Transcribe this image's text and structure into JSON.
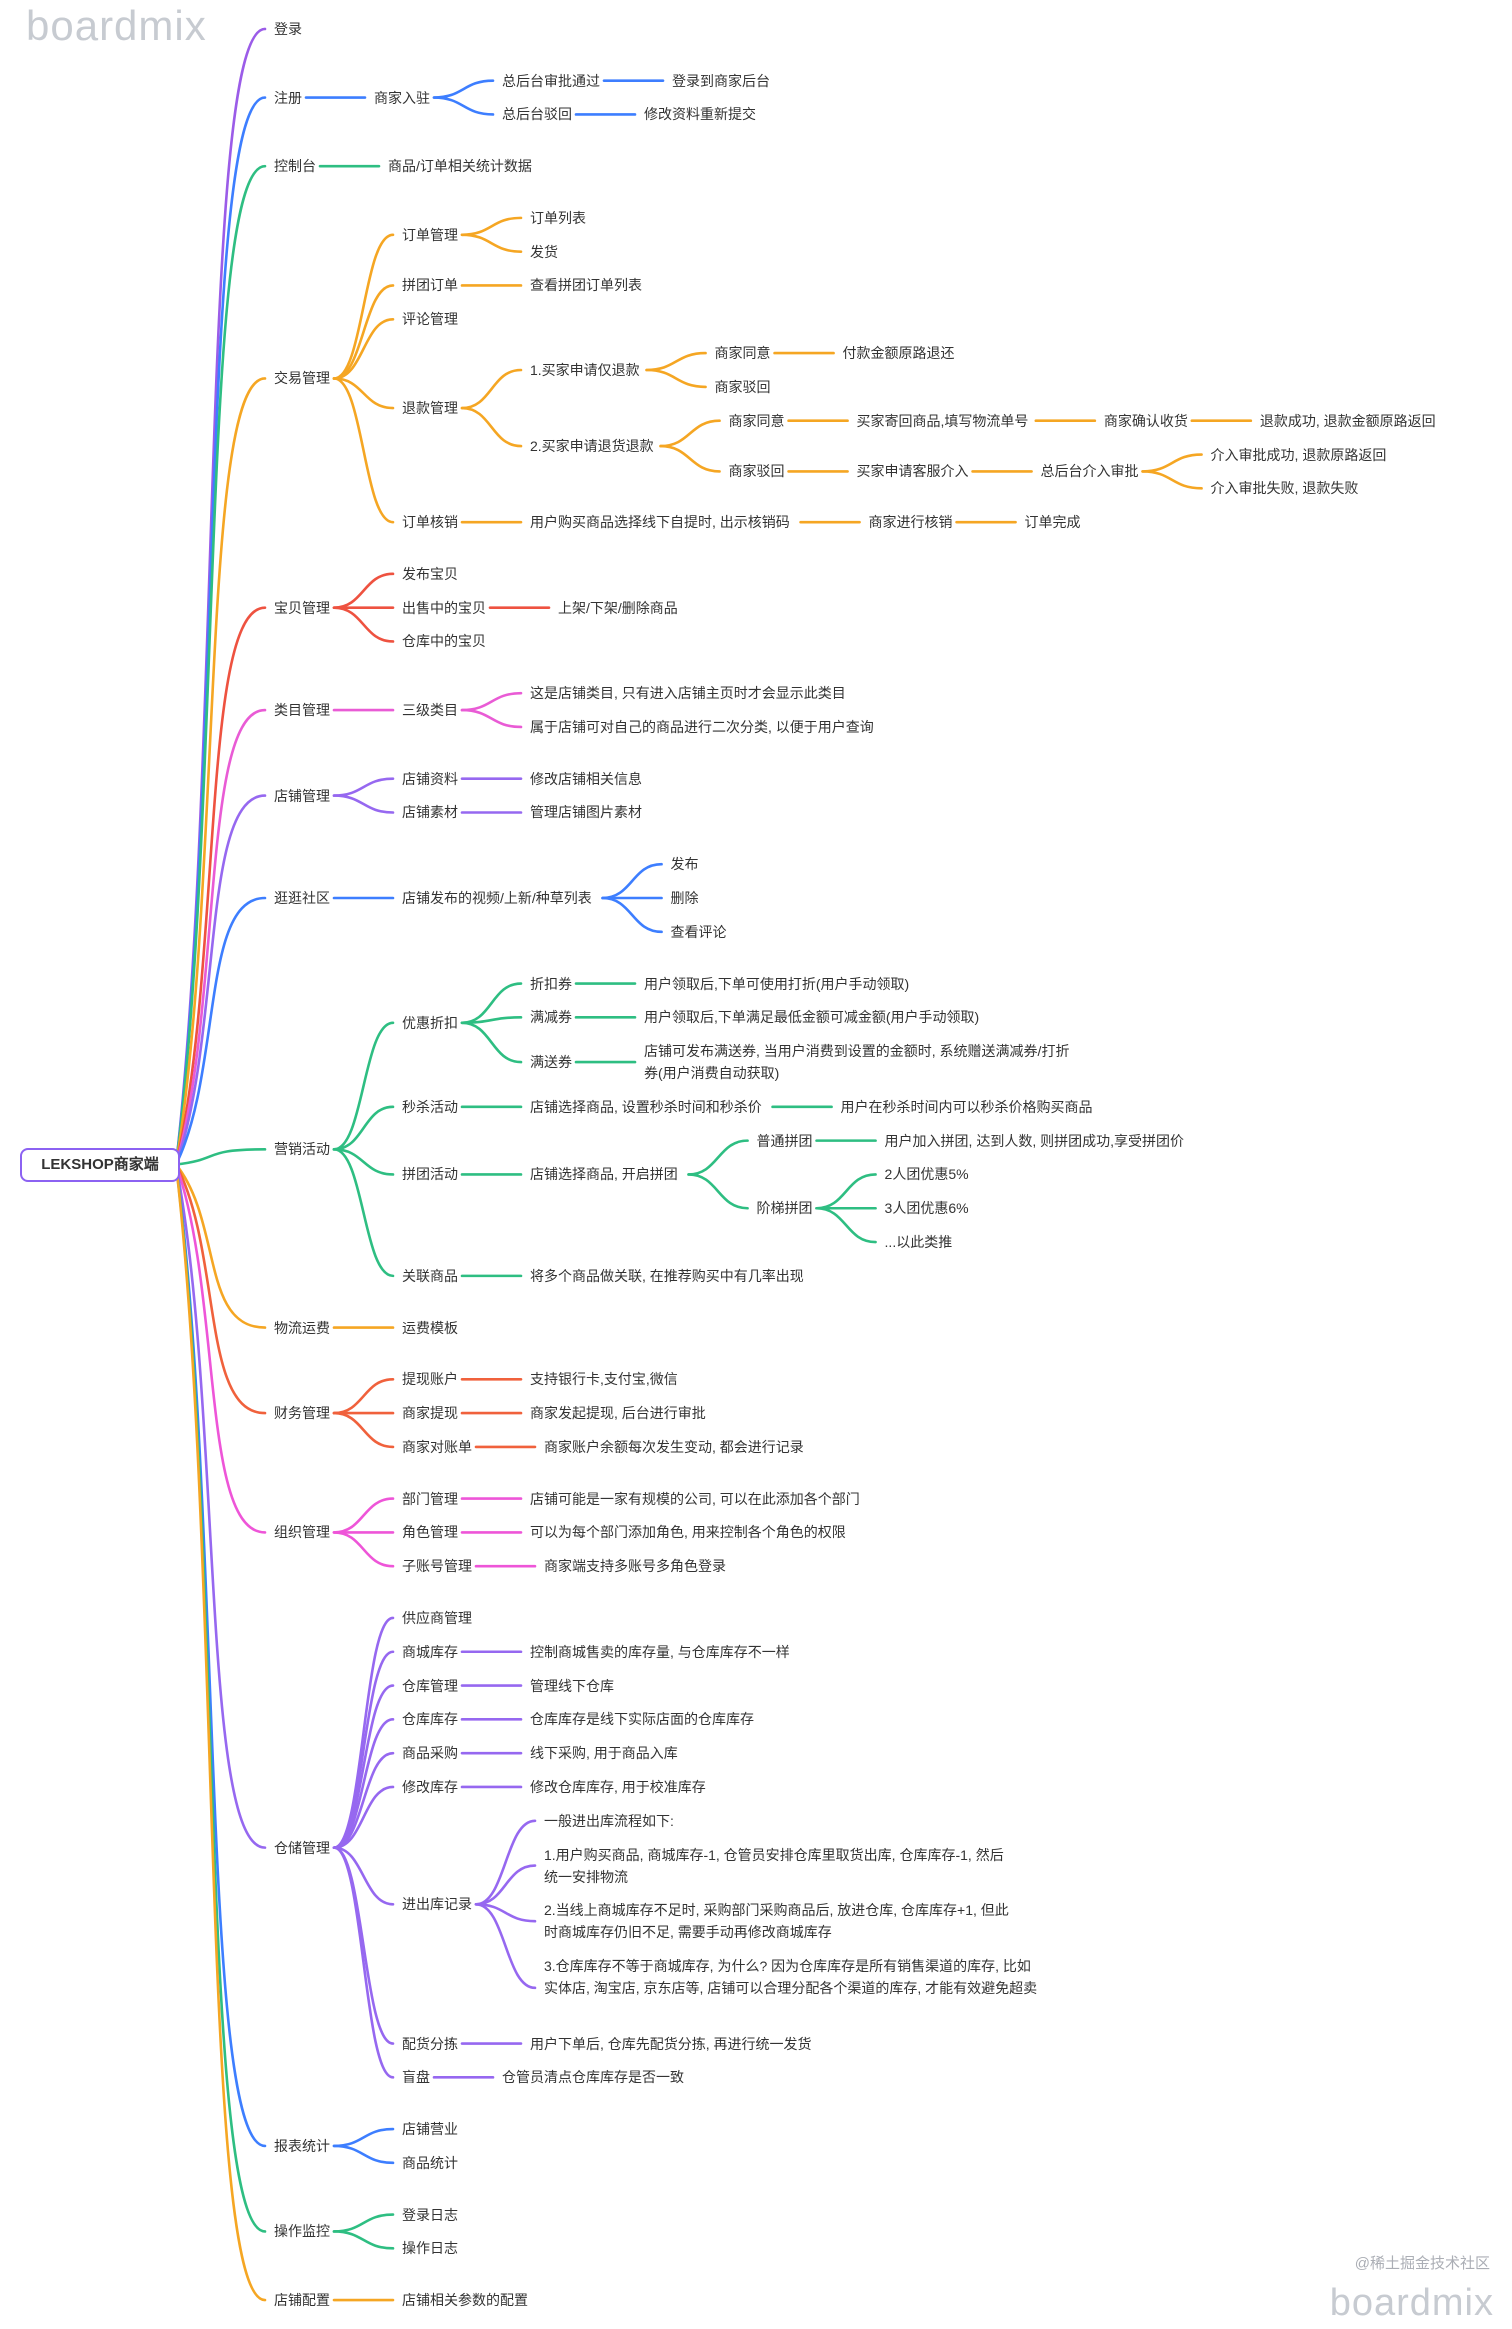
{
  "watermarks": {
    "top_left": "boardmix",
    "bottom_right": "boardmix",
    "credit": "@稀土掘金技术社区"
  },
  "palette": {
    "purple": "#9B5CE8",
    "blue": "#3D7EFF",
    "green": "#2EBE82",
    "orange": "#F5A623",
    "red": "#EE5240",
    "magenta": "#E95BD5",
    "violet": "#9668F0",
    "red_orange": "#F0613C",
    "pink": "#EE55D8",
    "root_border": "#8C62F2"
  },
  "mindmap": {
    "root": {
      "n": "root",
      "label": "LEKSHOP商家端",
      "children": [
        {
          "n": "login",
          "label": "登录",
          "color": "#9B5CE8"
        },
        {
          "n": "register",
          "label": "注册",
          "color": "#3D7EFF",
          "children": [
            {
              "n": "merchant-onboarding",
              "label": "商家入驻",
              "children": [
                {
                  "n": "approval-passed",
                  "label": "总后台审批通过",
                  "children": [
                    {
                      "n": "login-backend",
                      "label": "登录到商家后台"
                    }
                  ]
                },
                {
                  "n": "approval-rejected",
                  "label": "总后台驳回",
                  "children": [
                    {
                      "n": "resubmit",
                      "label": "修改资料重新提交"
                    }
                  ]
                }
              ]
            }
          ]
        },
        {
          "n": "dashboard",
          "label": "控制台",
          "color": "#2EBE82",
          "children": [
            {
              "n": "dashboard-stats",
              "label": "商品/订单相关统计数据"
            }
          ]
        },
        {
          "n": "trade-management",
          "label": "交易管理",
          "color": "#F5A623",
          "children": [
            {
              "n": "order-management",
              "label": "订单管理",
              "children": [
                {
                  "n": "order-list",
                  "label": "订单列表"
                },
                {
                  "n": "ship-goods",
                  "label": "发货"
                }
              ]
            },
            {
              "n": "group-order",
              "label": "拼团订单",
              "children": [
                {
                  "n": "group-order-list",
                  "label": "查看拼团订单列表"
                }
              ]
            },
            {
              "n": "comment-management",
              "label": "评论管理"
            },
            {
              "n": "refund-management",
              "label": "退款管理",
              "children": [
                {
                  "n": "refund-only-request",
                  "label": "1.买家申请仅退款",
                  "children": [
                    {
                      "n": "agree-1",
                      "label": "商家同意",
                      "children": [
                        {
                          "n": "refund-route",
                          "label": "付款金额原路退还"
                        }
                      ]
                    },
                    {
                      "n": "reject-1",
                      "label": "商家驳回"
                    }
                  ]
                },
                {
                  "n": "return-refund-request",
                  "label": "2.买家申请退货退款",
                  "children": [
                    {
                      "n": "agree-2",
                      "label": "商家同意",
                      "children": [
                        {
                          "n": "buyer-return-goods",
                          "label": "买家寄回商品,填写物流单号",
                          "children": [
                            {
                              "n": "confirm-receipt",
                              "label": "商家确认收货",
                              "children": [
                                {
                                  "n": "refund-success",
                                  "label": "退款成功, 退款金额原路返回"
                                }
                              ]
                            }
                          ]
                        }
                      ]
                    },
                    {
                      "n": "reject-2",
                      "label": "商家驳回",
                      "children": [
                        {
                          "n": "apply-customer-service",
                          "label": "买家申请客服介入",
                          "children": [
                            {
                              "n": "admin-arbitration",
                              "label": "总后台介入审批",
                              "children": [
                                {
                                  "n": "arbitration-success",
                                  "label": "介入审批成功, 退款原路返回"
                                },
                                {
                                  "n": "arbitration-fail",
                                  "label": "介入审批失败, 退款失败"
                                }
                              ]
                            }
                          ]
                        }
                      ]
                    }
                  ]
                }
              ]
            },
            {
              "n": "order-verification",
              "label": "订单核销",
              "children": [
                {
                  "n": "show-verify-code",
                  "label": "用户购买商品选择线下自提时, 出示核销码",
                  "children": [
                    {
                      "n": "merchant-verify",
                      "label": "商家进行核销",
                      "children": [
                        {
                          "n": "order-complete",
                          "label": "订单完成"
                        }
                      ]
                    }
                  ]
                }
              ]
            }
          ]
        },
        {
          "n": "product-management",
          "label": "宝贝管理",
          "color": "#EE5240",
          "children": [
            {
              "n": "publish-product",
              "label": "发布宝贝"
            },
            {
              "n": "on-sale-products",
              "label": "出售中的宝贝",
              "children": [
                {
                  "n": "shelf-operations",
                  "label": "上架/下架/删除商品"
                }
              ]
            },
            {
              "n": "warehouse-products",
              "label": "仓库中的宝贝"
            }
          ]
        },
        {
          "n": "category-management",
          "label": "类目管理",
          "color": "#E95BD5",
          "children": [
            {
              "n": "third-level-category",
              "label": "三级类目",
              "children": [
                {
                  "n": "category-note-1",
                  "label": "这是店铺类目, 只有进入店铺主页时才会显示此类目"
                },
                {
                  "n": "category-note-2",
                  "label": "属于店铺可对自己的商品进行二次分类, 以便于用户查询"
                }
              ]
            }
          ]
        },
        {
          "n": "shop-management",
          "label": "店铺管理",
          "color": "#9668F0",
          "children": [
            {
              "n": "shop-profile",
              "label": "店铺资料",
              "children": [
                {
                  "n": "edit-shop-info",
                  "label": "修改店铺相关信息"
                }
              ]
            },
            {
              "n": "shop-assets",
              "label": "店铺素材",
              "children": [
                {
                  "n": "manage-shop-images",
                  "label": "管理店铺图片素材"
                }
              ]
            }
          ]
        },
        {
          "n": "community",
          "label": "逛逛社区",
          "color": "#3D7EFF",
          "children": [
            {
              "n": "community-feed-list",
              "label": "店铺发布的视频/上新/种草列表",
              "children": [
                {
                  "n": "feed-publish",
                  "label": "发布"
                },
                {
                  "n": "feed-delete",
                  "label": "删除"
                },
                {
                  "n": "feed-view-comments",
                  "label": "查看评论"
                }
              ]
            }
          ]
        },
        {
          "n": "marketing",
          "label": "营销活动",
          "color": "#2EBE82",
          "children": [
            {
              "n": "discount-offers",
              "label": "优惠折扣",
              "children": [
                {
                  "n": "discount-coupon",
                  "label": "折扣券",
                  "children": [
                    {
                      "n": "discount-coupon-desc",
                      "label": "用户领取后,下单可使用打折(用户手动领取)"
                    }
                  ]
                },
                {
                  "n": "full-reduction-coupon",
                  "label": "满减券",
                  "children": [
                    {
                      "n": "full-reduction-desc",
                      "label": "用户领取后,下单满足最低金额可减金额(用户手动领取)"
                    }
                  ]
                },
                {
                  "n": "full-gift-coupon",
                  "label": "满送券",
                  "children": [
                    {
                      "n": "full-gift-desc",
                      "label": "店铺可发布满送券, 当用户消费到设置的金额时, 系统赠送满减券/打折券(用户消费自动获取)",
                      "wrap": 430
                    }
                  ]
                }
              ]
            },
            {
              "n": "flash-sale",
              "label": "秒杀活动",
              "children": [
                {
                  "n": "flash-sale-setup",
                  "label": "店铺选择商品, 设置秒杀时间和秒杀价",
                  "children": [
                    {
                      "n": "flash-sale-desc",
                      "label": "用户在秒杀时间内可以秒杀价格购买商品"
                    }
                  ]
                }
              ]
            },
            {
              "n": "group-buy",
              "label": "拼团活动",
              "children": [
                {
                  "n": "group-buy-setup",
                  "label": "店铺选择商品, 开启拼团",
                  "children": [
                    {
                      "n": "normal-group",
                      "label": "普通拼团",
                      "children": [
                        {
                          "n": "normal-group-desc",
                          "label": "用户加入拼团, 达到人数, 则拼团成功,享受拼团价"
                        }
                      ]
                    },
                    {
                      "n": "tiered-group",
                      "label": "阶梯拼团",
                      "children": [
                        {
                          "n": "tier-2",
                          "label": "2人团优惠5%"
                        },
                        {
                          "n": "tier-3",
                          "label": "3人团优惠6%"
                        },
                        {
                          "n": "tier-more",
                          "label": "...以此类推"
                        }
                      ]
                    }
                  ]
                }
              ]
            },
            {
              "n": "related-products",
              "label": "关联商品",
              "children": [
                {
                  "n": "related-products-desc",
                  "label": "将多个商品做关联, 在推荐购买中有几率出现"
                }
              ]
            }
          ]
        },
        {
          "n": "logistics",
          "label": "物流运费",
          "color": "#F5A623",
          "children": [
            {
              "n": "freight-template",
              "label": "运费模板"
            }
          ]
        },
        {
          "n": "finance",
          "label": "财务管理",
          "color": "#F0613C",
          "children": [
            {
              "n": "withdrawal-account",
              "label": "提现账户",
              "children": [
                {
                  "n": "withdrawal-methods",
                  "label": "支持银行卡,支付宝,微信"
                }
              ]
            },
            {
              "n": "merchant-withdrawal",
              "label": "商家提现",
              "children": [
                {
                  "n": "withdrawal-flow",
                  "label": "商家发起提现, 后台进行审批"
                }
              ]
            },
            {
              "n": "merchant-statement",
              "label": "商家对账单",
              "children": [
                {
                  "n": "statement-desc",
                  "label": "商家账户余额每次发生变动, 都会进行记录"
                }
              ]
            }
          ]
        },
        {
          "n": "organization",
          "label": "组织管理",
          "color": "#EE55D8",
          "children": [
            {
              "n": "department-management",
              "label": "部门管理",
              "children": [
                {
                  "n": "department-desc",
                  "label": "店铺可能是一家有规模的公司, 可以在此添加各个部门"
                }
              ]
            },
            {
              "n": "role-management",
              "label": "角色管理",
              "children": [
                {
                  "n": "role-desc",
                  "label": "可以为每个部门添加角色, 用来控制各个角色的权限"
                }
              ]
            },
            {
              "n": "sub-account-management",
              "label": "子账号管理",
              "children": [
                {
                  "n": "sub-account-desc",
                  "label": "商家端支持多账号多角色登录"
                }
              ]
            }
          ]
        },
        {
          "n": "warehouse",
          "label": "仓储管理",
          "color": "#9668F0",
          "children": [
            {
              "n": "supplier-management",
              "label": "供应商管理"
            },
            {
              "n": "mall-stock",
              "label": "商城库存",
              "children": [
                {
                  "n": "mall-stock-desc",
                  "label": "控制商城售卖的库存量, 与仓库库存不一样"
                }
              ]
            },
            {
              "n": "warehouse-management",
              "label": "仓库管理",
              "children": [
                {
                  "n": "warehouse-management-desc",
                  "label": "管理线下仓库"
                }
              ]
            },
            {
              "n": "warehouse-stock",
              "label": "仓库库存",
              "children": [
                {
                  "n": "warehouse-stock-desc",
                  "label": "仓库库存是线下实际店面的仓库库存"
                }
              ]
            },
            {
              "n": "product-purchasing",
              "label": "商品采购",
              "children": [
                {
                  "n": "purchasing-desc",
                  "label": "线下采购, 用于商品入库"
                }
              ]
            },
            {
              "n": "modify-stock",
              "label": "修改库存",
              "children": [
                {
                  "n": "modify-stock-desc",
                  "label": "修改仓库库存, 用于校准库存"
                }
              ]
            },
            {
              "n": "inout-records",
              "label": "进出库记录",
              "children": [
                {
                  "n": "inout-intro",
                  "label": "一般进出库流程如下:"
                },
                {
                  "n": "inout-flow-1",
                  "label": "1.用户购买商品, 商城库存-1, 仓管员安排仓库里取货出库, 仓库库存-1, 然后统一安排物流",
                  "wrap": 470
                },
                {
                  "n": "inout-flow-2",
                  "label": "2.当线上商城库存不足时, 采购部门采购商品后, 放进仓库, 仓库库存+1, 但此时商城库存仍旧不足, 需要手动再修改商城库存",
                  "wrap": 470
                },
                {
                  "n": "inout-flow-3",
                  "label": "3.仓库库存不等于商城库存, 为什么? 因为仓库库存是所有销售渠道的库存, 比如实体店, 淘宝店, 京东店等, 店铺可以合理分配各个渠道的库存, 才能有效避免超卖",
                  "wrap": 500
                }
              ]
            },
            {
              "n": "picking",
              "label": "配货分拣",
              "children": [
                {
                  "n": "picking-desc",
                  "label": "用户下单后, 仓库先配货分拣, 再进行统一发货"
                }
              ]
            },
            {
              "n": "blind-count",
              "label": "盲盘",
              "children": [
                {
                  "n": "blind-count-desc",
                  "label": "仓管员清点仓库库存是否一致"
                }
              ]
            }
          ]
        },
        {
          "n": "report-statistics",
          "label": "报表统计",
          "color": "#3D7EFF",
          "children": [
            {
              "n": "shop-business",
              "label": "店铺营业"
            },
            {
              "n": "product-statistics",
              "label": "商品统计"
            }
          ]
        },
        {
          "n": "operation-monitoring",
          "label": "操作监控",
          "color": "#2EBE82",
          "children": [
            {
              "n": "login-log",
              "label": "登录日志"
            },
            {
              "n": "operation-log",
              "label": "操作日志"
            }
          ]
        },
        {
          "n": "shop-config",
          "label": "店铺配置",
          "color": "#F5A623",
          "children": [
            {
              "n": "shop-config-desc",
              "label": "店铺相关参数的配置"
            }
          ]
        }
      ]
    }
  }
}
